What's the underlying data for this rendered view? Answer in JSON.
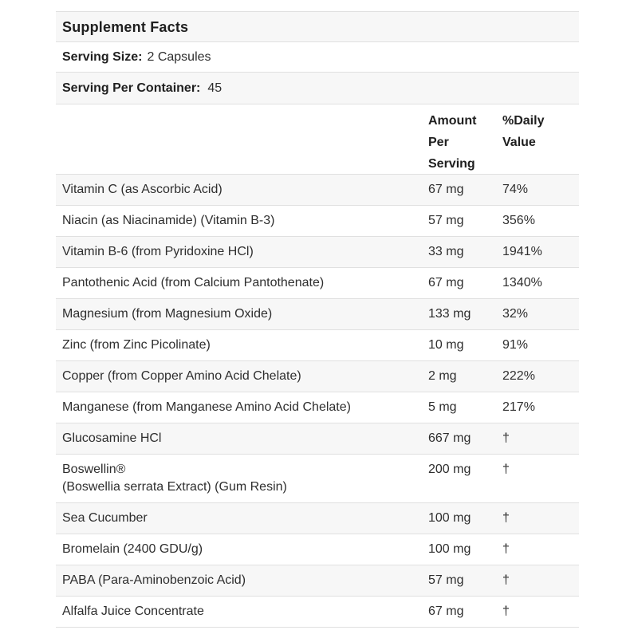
{
  "supplement_facts": {
    "title": "Supplement Facts",
    "serving_size": {
      "label": "Serving Size:",
      "value": "2 Capsules"
    },
    "servings_per_container": {
      "label": "Serving Per Container:",
      "value": "45"
    },
    "columns": {
      "amount": "Amount Per Serving",
      "daily_value": "%Daily Value"
    },
    "footnote_symbol": "†",
    "colors": {
      "stripe": "#f7f7f7",
      "separator": "#e0e0e0",
      "text": "#2e2e2e"
    },
    "rows": [
      {
        "label": "Vitamin C (as Ascorbic Acid)",
        "amount": "67 mg",
        "daily_value": "74%"
      },
      {
        "label": "Niacin (as Niacinamide) (Vitamin B-3)",
        "amount": "57 mg",
        "daily_value": "356%"
      },
      {
        "label": "Vitamin B-6 (from Pyridoxine HCl)",
        "amount": "33 mg",
        "daily_value": "1941%"
      },
      {
        "label": "Pantothenic Acid (from Calcium Pantothenate)",
        "amount": "67 mg",
        "daily_value": "1340%"
      },
      {
        "label": "Magnesium (from Magnesium Oxide)",
        "amount": "133 mg",
        "daily_value": "32%"
      },
      {
        "label": "Zinc (from Zinc Picolinate)",
        "amount": "10 mg",
        "daily_value": "91%"
      },
      {
        "label": "Copper (from Copper Amino Acid Chelate)",
        "amount": "2 mg",
        "daily_value": "222%"
      },
      {
        "label": "Manganese (from Manganese Amino Acid Chelate)",
        "amount": "5 mg",
        "daily_value": "217%"
      },
      {
        "label": "Glucosamine HCl",
        "amount": "667 mg",
        "daily_value": "†"
      },
      {
        "label": "Boswellin®",
        "label2": "(Boswellia serrata Extract) (Gum Resin)",
        "amount": "200 mg",
        "daily_value": "†"
      },
      {
        "label": "Sea Cucumber",
        "amount": "100 mg",
        "daily_value": "†"
      },
      {
        "label": "Bromelain (2400 GDU/g)",
        "amount": "100 mg",
        "daily_value": "†"
      },
      {
        "label": "PABA (Para-Aminobenzoic Acid)",
        "amount": "57 mg",
        "daily_value": "†"
      },
      {
        "label": "Alfalfa Juice Concentrate",
        "amount": "67 mg",
        "daily_value": "†"
      }
    ]
  }
}
